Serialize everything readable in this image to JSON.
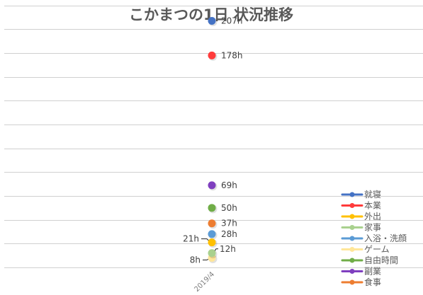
{
  "chart_data": {
    "type": "scatter",
    "title": "こかまつの1日 状況推移",
    "categories": [
      "2019/4"
    ],
    "ylim": [
      0,
      240
    ],
    "y_gridline_step": 20,
    "grid": true,
    "legend_position": "right",
    "series": [
      {
        "name": "就寝",
        "color": "#4472C4",
        "values": [
          207
        ],
        "label": "207h"
      },
      {
        "name": "本業",
        "color": "#FF3B3B",
        "values": [
          178
        ],
        "label": "178h"
      },
      {
        "name": "外出",
        "color": "#FFC000",
        "values": [
          21
        ],
        "label": "21h"
      },
      {
        "name": "家事",
        "color": "#A9D18E",
        "values": [
          12
        ],
        "label": "12h"
      },
      {
        "name": "入浴・洗顔",
        "color": "#5B9BD5",
        "values": [
          28
        ],
        "label": "28h"
      },
      {
        "name": "ゲーム",
        "color": "#FFE699",
        "values": [
          8
        ],
        "label": "8h"
      },
      {
        "name": "自由時間",
        "color": "#70AD47",
        "values": [
          50
        ],
        "label": "50h"
      },
      {
        "name": "副業",
        "color": "#7F3FBF",
        "values": [
          69
        ],
        "label": "69h"
      },
      {
        "name": "食事",
        "color": "#ED7D31",
        "values": [
          37
        ],
        "label": "37h"
      }
    ]
  }
}
